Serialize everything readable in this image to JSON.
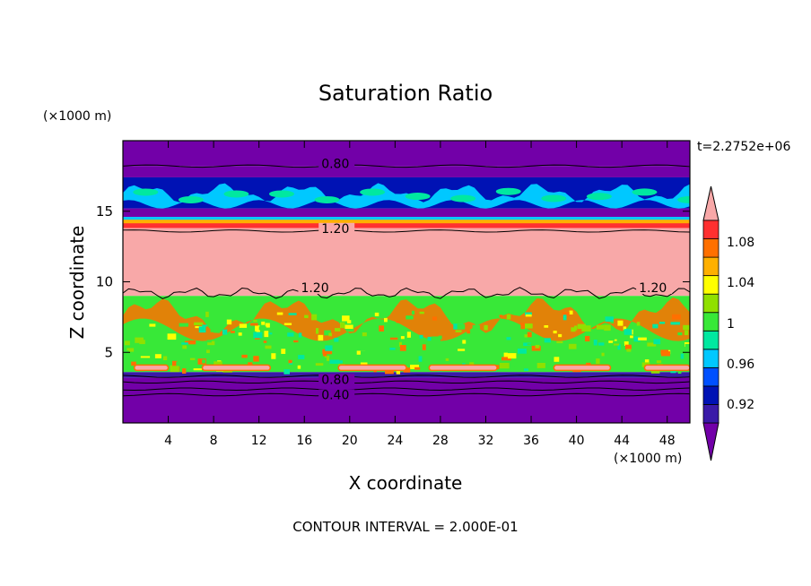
{
  "chart_data": {
    "type": "heatmap",
    "title": "Saturation Ratio",
    "xlabel": "X coordinate",
    "ylabel": "Z coordinate",
    "x_units": "(×1000 m)",
    "y_units": "(×1000 m)",
    "time_label": "t=2.2752e+06",
    "footer": "CONTOUR INTERVAL = 2.000E-01",
    "xlim": [
      0,
      50
    ],
    "ylim": [
      0,
      20
    ],
    "x_ticks": [
      4,
      8,
      12,
      16,
      20,
      24,
      28,
      32,
      36,
      40,
      44,
      48
    ],
    "y_ticks": [
      5,
      10,
      15
    ],
    "colorbar": {
      "levels": [
        0.92,
        0.96,
        1,
        1.04,
        1.08
      ],
      "labels": [
        "0.92",
        "0.96",
        "1",
        "1.04",
        "1.08"
      ],
      "colors": [
        "#7200a8",
        "#3a1aa8",
        "#0012b4",
        "#0050ff",
        "#00c8ff",
        "#00e8a0",
        "#38e838",
        "#90e000",
        "#ffff00",
        "#ffb000",
        "#ff7000",
        "#ff3030",
        "#f8a8a8"
      ]
    },
    "contour_labels": [
      {
        "text": "0.80",
        "x": 17.5,
        "y": 18.2
      },
      {
        "text": "1.20",
        "x": 17.5,
        "y": 13.6
      },
      {
        "text": "1.20",
        "x": 15.7,
        "y": 9.4
      },
      {
        "text": "1.20",
        "x": 45.5,
        "y": 9.4
      },
      {
        "text": "0.80",
        "x": 17.5,
        "y": 2.9
      },
      {
        "text": "0.40",
        "x": 17.5,
        "y": 1.8
      }
    ],
    "bands": [
      {
        "z0": 18.2,
        "z1": 20,
        "color": "#7200a8"
      },
      {
        "z0": 17.4,
        "z1": 18.2,
        "color": "#7200a8"
      },
      {
        "z0": 15.2,
        "z1": 17.4,
        "color": "#0012b4"
      },
      {
        "z0": 14.6,
        "z1": 15.2,
        "color": "#7200a8"
      },
      {
        "z0": 14.2,
        "z1": 14.6,
        "color": "#00c8ff"
      },
      {
        "z0": 13.8,
        "z1": 14.2,
        "color": "#ff3030"
      },
      {
        "z0": 9.0,
        "z1": 13.8,
        "color": "#f8a8a8"
      },
      {
        "z0": 3.6,
        "z1": 9.0,
        "color": "#38e838"
      },
      {
        "z0": 3.2,
        "z1": 3.6,
        "color": "#3a1aa8"
      },
      {
        "z0": 0,
        "z1": 3.2,
        "color": "#7200a8"
      }
    ],
    "contour_lines": [
      18.2,
      13.6,
      3.3,
      2.9,
      2.4,
      2.0
    ]
  }
}
